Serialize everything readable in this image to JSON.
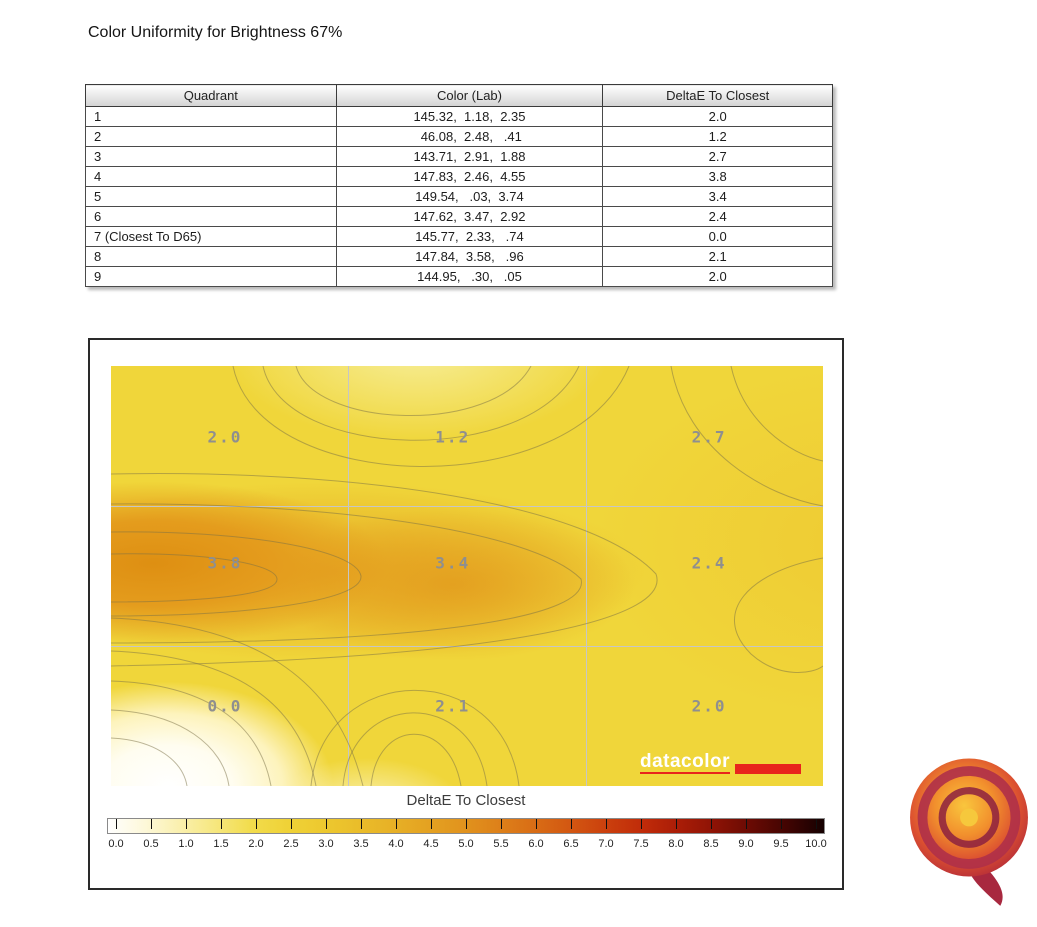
{
  "title": "Color Uniformity for Brightness 67%",
  "table": {
    "headers": [
      "Quadrant",
      "Color (Lab)",
      "DeltaE To Closest"
    ],
    "rows": [
      {
        "quadrant": "1",
        "color": "145.32,  1.18,  2.35",
        "delta": "2.0"
      },
      {
        "quadrant": "2",
        "color": " 46.08,  2.48,   .41",
        "delta": "1.2"
      },
      {
        "quadrant": "3",
        "color": "143.71,  2.91,  1.88",
        "delta": "2.7"
      },
      {
        "quadrant": "4",
        "color": "147.83,  2.46,  4.55",
        "delta": "3.8"
      },
      {
        "quadrant": "5",
        "color": "149.54,   .03,  3.74",
        "delta": "3.4"
      },
      {
        "quadrant": "6",
        "color": "147.62,  3.47,  2.92",
        "delta": "2.4"
      },
      {
        "quadrant": "7 (Closest To D65)",
        "color": "145.77,  2.33,   .74",
        "delta": "0.0"
      },
      {
        "quadrant": "8",
        "color": "147.84,  3.58,   .96",
        "delta": "2.1"
      },
      {
        "quadrant": "9",
        "color": "144.95,   .30,   .05",
        "delta": "2.0"
      }
    ]
  },
  "chart_data": {
    "type": "heatmap",
    "title": "Color Uniformity for Brightness 67%",
    "values": [
      [
        2.0,
        1.2,
        2.7
      ],
      [
        3.8,
        3.4,
        2.4
      ],
      [
        0.0,
        2.1,
        2.0
      ]
    ],
    "colorbar": {
      "label": "DeltaE To Closest",
      "min": 0.0,
      "max": 10.0,
      "ticks": [
        "0.0",
        "0.5",
        "1.0",
        "1.5",
        "2.0",
        "2.5",
        "3.0",
        "3.5",
        "4.0",
        "4.5",
        "5.0",
        "5.5",
        "6.0",
        "6.5",
        "7.0",
        "7.5",
        "8.0",
        "8.5",
        "9.0",
        "9.5",
        "10.0"
      ]
    }
  },
  "logos": {
    "datacolor_text": "datacolor"
  },
  "colors": {
    "accent_red": "#e8241c",
    "plot_base_yellow": "#f0d63a",
    "value_label_gray": "#8f8f8f"
  }
}
